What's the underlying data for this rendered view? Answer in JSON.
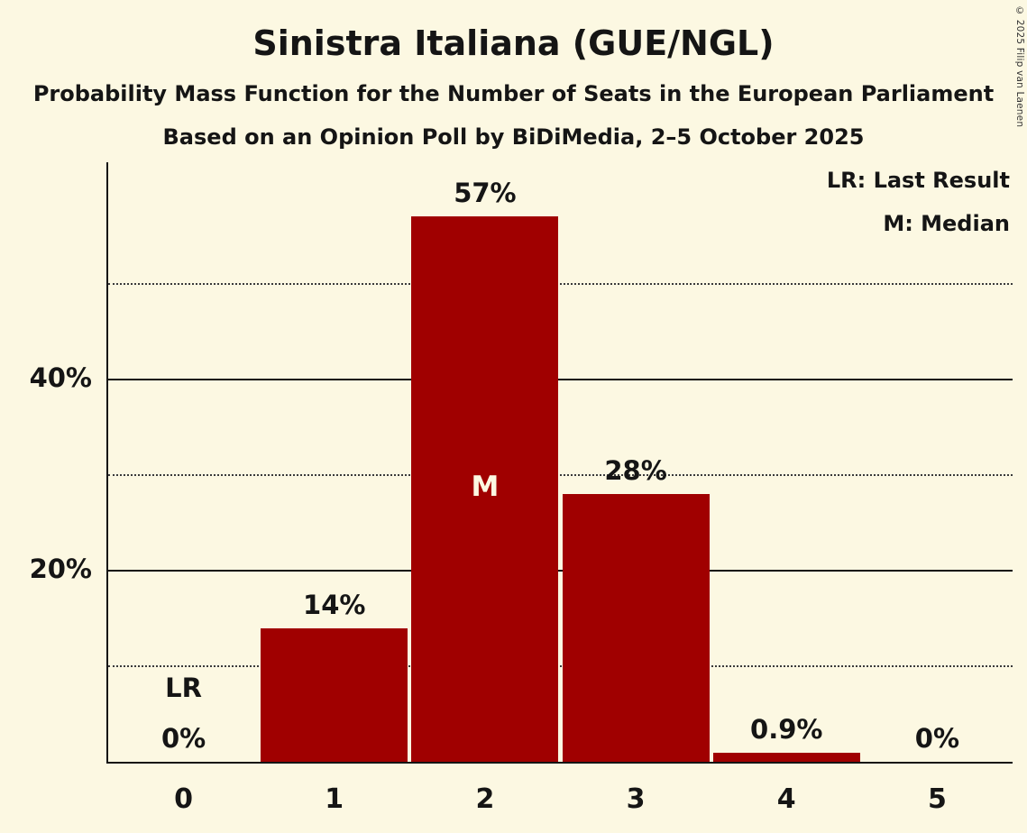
{
  "header": {
    "title": "Sinistra Italiana (GUE/NGL)",
    "subtitle1": "Probability Mass Function for the Number of Seats in the European Parliament",
    "subtitle2": "Based on an Opinion Poll by BiDiMedia, 2–5 October 2025"
  },
  "legend": {
    "last_result": "LR: Last Result",
    "median": "M: Median"
  },
  "copyright": "© 2025 Filip van Laenen",
  "colors": {
    "background": "#fcf8e2",
    "bar": "#a00000",
    "text": "#151515"
  },
  "chart_data": {
    "type": "bar",
    "title": "Sinistra Italiana (GUE/NGL)",
    "categories": [
      "0",
      "1",
      "2",
      "3",
      "4",
      "5"
    ],
    "values": [
      0,
      14,
      57,
      28,
      0.9,
      0
    ],
    "bar_labels": [
      "0%",
      "14%",
      "57%",
      "28%",
      "0.9%",
      "0%"
    ],
    "ylim": [
      0,
      62.7
    ],
    "yticks": [
      {
        "value": 20,
        "label": "20%"
      },
      {
        "value": 40,
        "label": "40%"
      }
    ],
    "solid_gridlines": [
      20,
      40
    ],
    "dotted_gridlines": [
      10,
      30,
      50
    ],
    "median": {
      "category_index": 2,
      "marker": "M"
    },
    "last_result": {
      "category_index": 0,
      "marker": "LR"
    },
    "legend_position": "top-right",
    "grid": true
  }
}
